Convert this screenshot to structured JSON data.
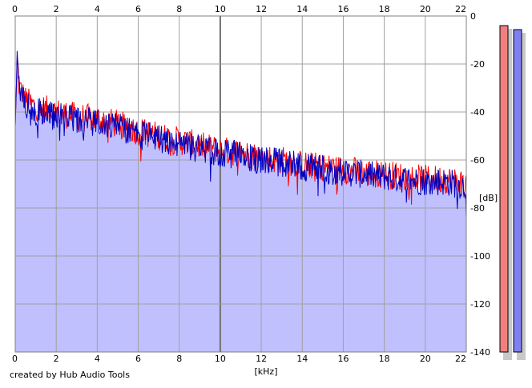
{
  "chart_data": {
    "type": "area",
    "title": "",
    "xlabel": "[kHz]",
    "ylabel": "[dB]",
    "xlim": [
      0,
      22
    ],
    "ylim": [
      -140,
      0
    ],
    "x_ticks": [
      0,
      2,
      4,
      6,
      8,
      10,
      12,
      14,
      16,
      18,
      20,
      22
    ],
    "y_ticks": [
      0,
      -20,
      -40,
      -60,
      -80,
      -100,
      -120,
      -140
    ],
    "grid": true,
    "legend": "none",
    "colors": {
      "left": "#ff0000",
      "right": "#0000c0",
      "fill": "#c0c0ff",
      "meter_left": "#f08080",
      "meter_right": "#8080f0"
    },
    "series": [
      {
        "x": [
          0,
          0.1,
          0.2,
          0.5,
          1,
          1.5,
          2,
          2.5,
          3,
          4,
          5,
          6,
          7,
          8,
          9,
          10,
          11,
          12,
          13,
          14,
          15,
          16,
          17,
          18,
          19,
          20,
          21,
          22
        ],
        "values": [
          -46,
          -17,
          -30,
          -35,
          -38,
          -39,
          -40,
          -41,
          -42,
          -43,
          -45,
          -48,
          -50,
          -52,
          -54,
          -56,
          -57,
          -59,
          -60,
          -62,
          -63,
          -64,
          -65,
          -66,
          -67,
          -68,
          -68,
          -70
        ]
      },
      {
        "x": [
          0,
          0.1,
          0.2,
          0.5,
          1,
          1.5,
          2,
          2.5,
          3,
          4,
          5,
          6,
          7,
          8,
          9,
          10,
          11,
          12,
          13,
          14,
          15,
          16,
          17,
          18,
          19,
          20,
          21,
          22
        ],
        "values": [
          -46,
          -16,
          -32,
          -37,
          -40,
          -41,
          -42,
          -42,
          -44,
          -44,
          -46,
          -49,
          -51,
          -54,
          -55,
          -57,
          -58,
          -60,
          -61,
          -63,
          -64,
          -65,
          -66,
          -67,
          -68,
          -69,
          -69,
          -71
        ]
      }
    ],
    "meters": {
      "left": -1,
      "right": -2
    }
  },
  "credit": "created by Hub Audio Tools"
}
